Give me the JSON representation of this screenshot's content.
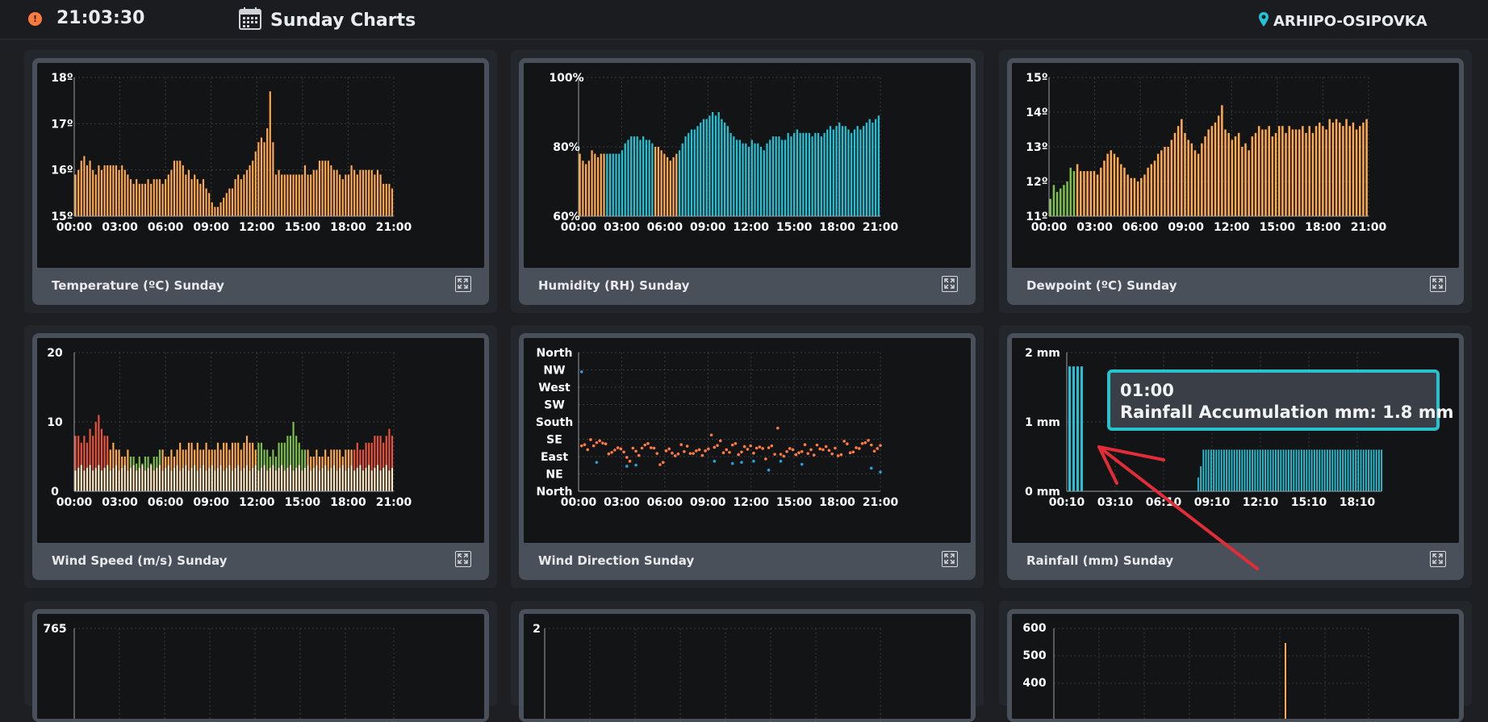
{
  "header": {
    "status_badge": "!",
    "clock": "21:03:30",
    "title": "Sunday Charts",
    "location": "ARHIPO-OSIPOVKA",
    "icons": {
      "status": "alert-dot-icon",
      "title": "calendar-icon",
      "location": "map-pin-icon",
      "expand": "expand-icon"
    }
  },
  "colors": {
    "orange": "#ffa94d",
    "teal": "#22c3d6",
    "green": "#7ec04a",
    "red": "#e8533a",
    "cream": "#ffe8c2",
    "blue": "#2b9fdc",
    "tooltip_border": "#28c2cf",
    "arrow": "#e02d38"
  },
  "cards": [
    {
      "title": "Temperature (ºC) Sunday"
    },
    {
      "title": "Humidity (RH) Sunday"
    },
    {
      "title": "Dewpoint (ºC) Sunday"
    },
    {
      "title": "Wind Speed (m/s) Sunday"
    },
    {
      "title": "Wind Direction Sunday"
    },
    {
      "title": "Rainfall (mm) Sunday"
    },
    {
      "title": ""
    },
    {
      "title": ""
    },
    {
      "title": ""
    }
  ],
  "tooltip": {
    "time": "01:00",
    "text": "Rainfall Accumulation mm:  1.8 mm"
  },
  "chart_data": [
    {
      "type": "bar",
      "x_ticks": [
        "00:00",
        "03:00",
        "06:00",
        "09:00",
        "12:00",
        "15:00",
        "18:00",
        "21:00"
      ],
      "y_ticks": [
        "15º",
        "16º",
        "17º",
        "18º"
      ],
      "ylim": [
        15,
        18
      ],
      "values": [
        15.9,
        16.0,
        16.2,
        16.3,
        16.1,
        16.2,
        16.0,
        15.9,
        16.1,
        16.0,
        16.1,
        16.1,
        16.1,
        16.1,
        16.1,
        16.0,
        16.1,
        16.0,
        15.9,
        15.8,
        15.7,
        15.8,
        15.7,
        15.7,
        15.7,
        15.8,
        15.7,
        15.8,
        15.8,
        15.8,
        15.7,
        15.8,
        15.9,
        16.0,
        16.2,
        16.2,
        16.2,
        16.1,
        15.9,
        16.0,
        15.8,
        15.9,
        15.8,
        15.7,
        15.8,
        15.6,
        15.5,
        15.3,
        15.2,
        15.2,
        15.3,
        15.4,
        15.5,
        15.6,
        15.6,
        15.8,
        15.9,
        15.8,
        15.9,
        16.0,
        16.1,
        16.2,
        16.4,
        16.6,
        16.7,
        16.6,
        16.9,
        17.7,
        16.6,
        15.9,
        16.0,
        15.9,
        15.9,
        15.9,
        15.9,
        15.9,
        15.9,
        15.9,
        15.9,
        16.1,
        15.9,
        15.9,
        16.0,
        16.0,
        16.2,
        16.2,
        16.2,
        16.2,
        16.1,
        16.0,
        16.0,
        15.9,
        15.8,
        15.9,
        15.9,
        16.1,
        16.0,
        15.9,
        16.0,
        16.0,
        16.0,
        16.0,
        16.0,
        15.9,
        16.0,
        15.9,
        15.7,
        15.7,
        15.7,
        15.6
      ],
      "colors": "orange"
    },
    {
      "type": "bar",
      "x_ticks": [
        "00:00",
        "03:00",
        "06:00",
        "09:00",
        "12:00",
        "15:00",
        "18:00",
        "21:00"
      ],
      "y_ticks": [
        "60%",
        "80%",
        "100%"
      ],
      "ylim": [
        60,
        100
      ],
      "values": [
        78,
        76,
        75,
        76,
        79,
        78,
        77,
        78,
        78,
        78,
        78,
        78,
        78,
        78,
        79,
        81,
        82,
        83,
        83,
        83,
        82,
        83,
        82,
        82,
        81,
        80,
        80,
        79,
        78,
        77,
        76,
        77,
        78,
        79,
        81,
        83,
        84,
        85,
        85,
        86,
        87,
        88,
        88,
        89,
        90,
        89,
        90,
        88,
        87,
        86,
        84,
        83,
        82,
        82,
        81,
        81,
        80,
        82,
        81,
        81,
        80,
        79,
        81,
        82,
        83,
        83,
        83,
        82,
        82,
        84,
        83,
        84,
        85,
        84,
        84,
        84,
        84,
        83,
        84,
        84,
        83,
        84,
        85,
        86,
        85,
        86,
        87,
        86,
        86,
        85,
        84,
        85,
        86,
        85,
        86,
        87,
        88,
        87,
        88,
        89
      ],
      "series_color": "mixed orange / teal"
    },
    {
      "type": "bar",
      "x_ticks": [
        "00:00",
        "03:00",
        "06:00",
        "09:00",
        "12:00",
        "15:00",
        "18:00",
        "21:00"
      ],
      "y_ticks": [
        "11º",
        "12º",
        "13º",
        "14º",
        "15º"
      ],
      "ylim": [
        11,
        15
      ],
      "values": [
        11.5,
        11.9,
        11.7,
        11.8,
        11.9,
        12.0,
        12.4,
        12.3,
        12.5,
        12.3,
        12.3,
        12.3,
        12.3,
        12.3,
        12.2,
        12.4,
        12.6,
        12.8,
        12.9,
        12.8,
        12.7,
        12.5,
        12.4,
        12.2,
        12.1,
        12.1,
        12.0,
        12.1,
        12.2,
        12.4,
        12.5,
        12.6,
        12.8,
        12.9,
        13.0,
        13.0,
        13.2,
        13.4,
        13.6,
        13.8,
        13.4,
        13.2,
        13.1,
        12.9,
        12.8,
        13.1,
        13.3,
        13.5,
        13.6,
        13.7,
        13.9,
        14.2,
        13.5,
        13.4,
        13.2,
        13.3,
        13.4,
        13.0,
        13.1,
        12.9,
        13.3,
        13.4,
        13.6,
        13.5,
        13.5,
        13.6,
        13.3,
        13.4,
        13.6,
        13.6,
        13.4,
        13.6,
        13.5,
        13.5,
        13.5,
        13.6,
        13.4,
        13.6,
        13.4,
        13.6,
        13.7,
        13.6,
        13.5,
        13.8,
        13.7,
        13.8,
        13.7,
        13.6,
        13.8,
        13.6,
        13.7,
        13.5,
        13.6,
        13.7,
        13.8
      ],
      "colors": "orange / green"
    },
    {
      "type": "bar",
      "x_ticks": [
        "00:00",
        "03:00",
        "06:00",
        "09:00",
        "12:00",
        "15:00",
        "18:00",
        "21:00"
      ],
      "y_ticks": [
        "0",
        "10",
        "20"
      ],
      "ylim": [
        0,
        20
      ],
      "values": [
        8,
        8,
        7,
        8,
        7,
        9,
        8,
        10,
        11,
        9,
        8,
        8,
        6,
        7,
        6,
        6,
        5,
        5,
        6,
        5,
        5,
        4,
        5,
        4,
        5,
        5,
        4,
        5,
        5,
        6,
        6,
        5,
        5,
        6,
        5,
        6,
        7,
        6,
        6,
        7,
        7,
        6,
        7,
        6,
        6,
        7,
        6,
        6,
        6,
        7,
        6,
        7,
        7,
        6,
        7,
        7,
        7,
        6,
        7,
        8,
        7,
        7,
        6,
        7,
        7,
        6,
        6,
        5,
        6,
        5,
        7,
        7,
        7,
        8,
        8,
        10,
        8,
        7,
        6,
        6,
        6,
        5,
        5,
        6,
        5,
        5,
        6,
        5,
        6,
        6,
        6,
        6,
        5,
        6,
        6,
        6,
        6,
        7,
        6,
        6,
        7,
        7,
        7,
        8,
        8,
        8,
        7,
        8,
        9,
        8
      ],
      "colors": "red / green / cream"
    },
    {
      "type": "scatter",
      "x_ticks": [
        "00:00",
        "03:00",
        "06:00",
        "09:00",
        "12:00",
        "15:00",
        "18:00",
        "21:00"
      ],
      "y_ticks": [
        "North",
        "NE",
        "East",
        "SE",
        "South",
        "SW",
        "West",
        "NW",
        "North"
      ],
      "ylim": [
        0,
        360
      ]
    },
    {
      "type": "bar",
      "x_ticks": [
        "00:10",
        "03:10",
        "06:10",
        "09:10",
        "12:10",
        "15:10",
        "18:10"
      ],
      "y_ticks": [
        "0 mm",
        "1 mm",
        "2 mm"
      ],
      "ylim": [
        0,
        2
      ]
    },
    {
      "type": "bar",
      "y_ticks": [
        "765"
      ]
    },
    {
      "type": "bar",
      "y_ticks": [
        "2"
      ]
    },
    {
      "type": "bar",
      "y_ticks": [
        "400",
        "500",
        "600"
      ],
      "ylim": [
        400,
        600
      ]
    }
  ]
}
